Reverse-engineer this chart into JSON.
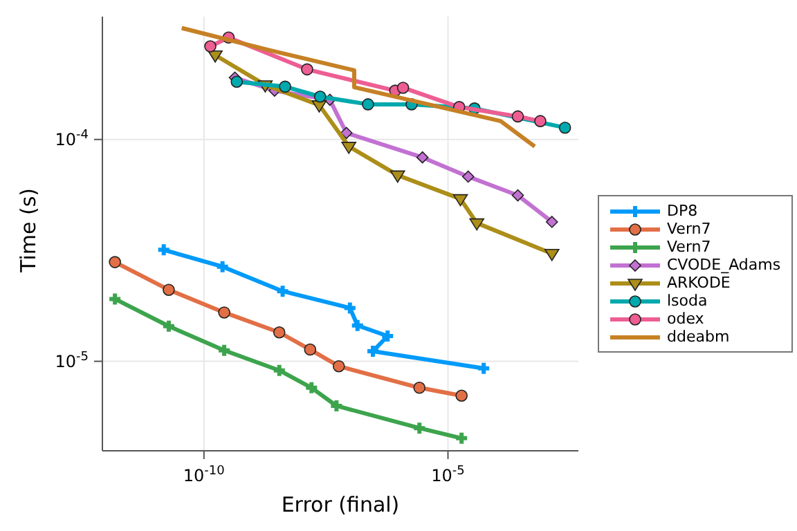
{
  "chart_data": {
    "type": "line",
    "xlabel": "Error (final)",
    "ylabel": "Time (s)",
    "log": "xy",
    "grid": true,
    "legend": "right",
    "xlim": [
      8.3e-13,
      0.0047
    ],
    "ylim": [
      3.95e-06,
      0.000358
    ],
    "xticks": [
      {
        "value": 1e-10,
        "label": "10$^{-10}$"
      },
      {
        "value": 1e-05,
        "label": "10$^{-5}$"
      }
    ],
    "yticks": [
      {
        "value": 1e-05,
        "label": "10$^{-5}$"
      },
      {
        "value": 0.0001,
        "label": "10$^{-4}$"
      }
    ],
    "series": [
      {
        "name": "DP8",
        "color": "#009af9",
        "marker": "cross",
        "x": [
          1.5e-11,
          2.4e-10,
          4.1e-09,
          9.8e-08,
          1.4e-07,
          5.8e-07,
          2.9e-07,
          5.4e-05
        ],
        "values": [
          3.18e-05,
          2.67e-05,
          2.07e-05,
          1.74e-05,
          1.45e-05,
          1.3e-05,
          1.11e-05,
          9.3e-06
        ]
      },
      {
        "name": "Vern7",
        "color": "#e26f46",
        "marker": "circle",
        "x": [
          1.5e-12,
          1.9e-11,
          2.6e-10,
          3.5e-09,
          1.5e-08,
          5.8e-08,
          2.6e-06,
          1.9e-05
        ],
        "values": [
          2.8e-05,
          2.1e-05,
          1.66e-05,
          1.35e-05,
          1.13e-05,
          9.5e-06,
          7.6e-06,
          7e-06
        ]
      },
      {
        "name": "Vern7",
        "color": "#3da44d",
        "marker": "cross",
        "x": [
          1.5e-12,
          1.9e-11,
          2.6e-10,
          3.5e-09,
          1.6e-08,
          5.2e-08,
          2.6e-06,
          1.9e-05
        ],
        "values": [
          1.91e-05,
          1.44e-05,
          1.12e-05,
          9.1e-06,
          7.6e-06,
          6.3e-06,
          5e-06,
          4.5e-06
        ]
      },
      {
        "name": "CVODE_Adams",
        "color": "#c271d2",
        "marker": "diamond",
        "x": [
          4.3e-10,
          2.8e-09,
          3.8e-08,
          8.3e-08,
          3e-06,
          2.6e-05,
          0.00027,
          0.00135
        ],
        "values": [
          0.00019,
          0.000166,
          0.000151,
          0.000107,
          8.3e-05,
          6.8e-05,
          5.6e-05,
          4.25e-05
        ]
      },
      {
        "name": "ARKODE",
        "color": "#ac8e18",
        "marker": "triangle",
        "x": [
          1.7e-10,
          1.8e-09,
          2.3e-08,
          9.3e-08,
          9.3e-07,
          1.8e-05,
          3.9e-05,
          0.00135
        ],
        "values": [
          0.00024,
          0.000176,
          0.000143,
          9.3e-05,
          6.9e-05,
          5.4e-05,
          4.2e-05,
          3.06e-05
        ]
      },
      {
        "name": "lsoda",
        "color": "#00a9ad",
        "marker": "circle",
        "x": [
          4.7e-10,
          4.6e-09,
          2.4e-08,
          2.3e-07,
          1.8e-06,
          3.5e-05,
          0.0025
        ],
        "values": [
          0.000182,
          0.000173,
          0.000156,
          0.000144,
          0.000144,
          0.000138,
          0.000113
        ]
      },
      {
        "name": "odex",
        "color": "#ed5e93",
        "marker": "circle",
        "x": [
          1.35e-10,
          3.2e-10,
          1.3e-08,
          8.3e-07,
          1.2e-06,
          1.7e-05,
          0.00027,
          0.00078
        ],
        "values": [
          0.000263,
          0.000288,
          0.000207,
          0.000166,
          0.000171,
          0.00014,
          0.000127,
          0.000121
        ]
      },
      {
        "name": "ddeabm",
        "color": "#c68125",
        "marker": "none",
        "x": [
          3.5e-11,
          2e-09,
          1.2e-07,
          1.2e-07,
          0.00012,
          0.0006
        ],
        "values": [
          0.000318,
          0.000254,
          0.000205,
          0.000172,
          0.000121,
          9.3e-05
        ]
      }
    ]
  }
}
